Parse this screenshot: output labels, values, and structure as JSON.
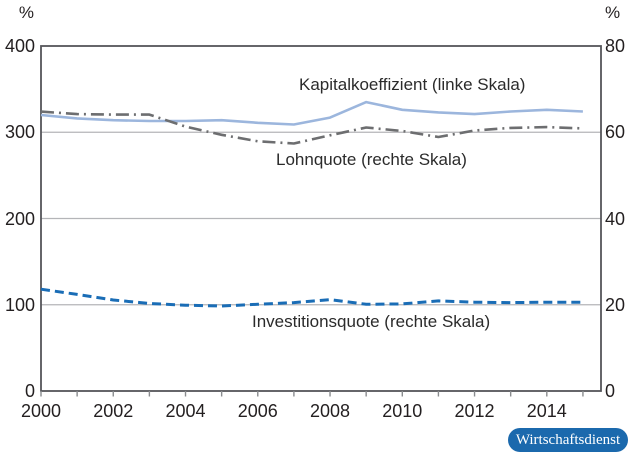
{
  "badge": {
    "text": "Wirtschaftsdienst",
    "bg_color": "#1b69ad",
    "text_color": "#ffffff"
  },
  "chart_data": {
    "type": "line",
    "x": [
      2000,
      2001,
      2002,
      2003,
      2004,
      2005,
      2006,
      2007,
      2008,
      2009,
      2010,
      2011,
      2012,
      2013,
      2014,
      2015
    ],
    "series": [
      {
        "name": "Kapitalkoeffizient (linke Skala)",
        "axis": "left",
        "style": "solid",
        "color": "#9cb6dd",
        "width": 2.6,
        "values": [
          320,
          316,
          314,
          313,
          313,
          314,
          311,
          309,
          317,
          335,
          326,
          323,
          321,
          324,
          326,
          324
        ]
      },
      {
        "name": "Lohnquote (rechte Skala)",
        "axis": "right",
        "style": "dashdot",
        "color": "#6d6e70",
        "width": 2.6,
        "values": [
          64.8,
          64.2,
          64.1,
          64.1,
          61.3,
          59.4,
          57.9,
          57.4,
          59.3,
          61.1,
          60.3,
          58.9,
          60.4,
          61.0,
          61.2,
          60.9
        ]
      },
      {
        "name": "Investitionsquote (rechte Skala)",
        "axis": "right",
        "style": "dashed",
        "color": "#1a6db6",
        "width": 3,
        "values": [
          23.6,
          22.4,
          21.1,
          20.3,
          19.9,
          19.7,
          20.1,
          20.5,
          21.2,
          20.1,
          20.2,
          20.9,
          20.6,
          20.5,
          20.6,
          20.6
        ]
      }
    ],
    "left_axis": {
      "unit": "%",
      "range": [
        0,
        400
      ],
      "ticks": [
        400,
        300,
        200,
        100,
        0
      ]
    },
    "right_axis": {
      "unit": "%",
      "range": [
        0,
        80
      ],
      "ticks": [
        80,
        60,
        40,
        20,
        0
      ]
    },
    "x_axis": {
      "range": [
        2000,
        2015.5
      ],
      "tick_years": [
        2000,
        2001,
        2002,
        2003,
        2004,
        2005,
        2006,
        2007,
        2008,
        2009,
        2010,
        2011,
        2012,
        2013,
        2014,
        2015
      ],
      "label_years": [
        "2000",
        "2002",
        "2004",
        "2006",
        "2008",
        "2010",
        "2012",
        "2014"
      ]
    },
    "grid_values_left": [
      300,
      200,
      100
    ],
    "grid_on": true,
    "legend_position": "inline-annotations",
    "colors": {
      "axis_frame": "#55565a",
      "gridline": "#b4b5b8",
      "tick_mark": "#898b8e"
    }
  }
}
